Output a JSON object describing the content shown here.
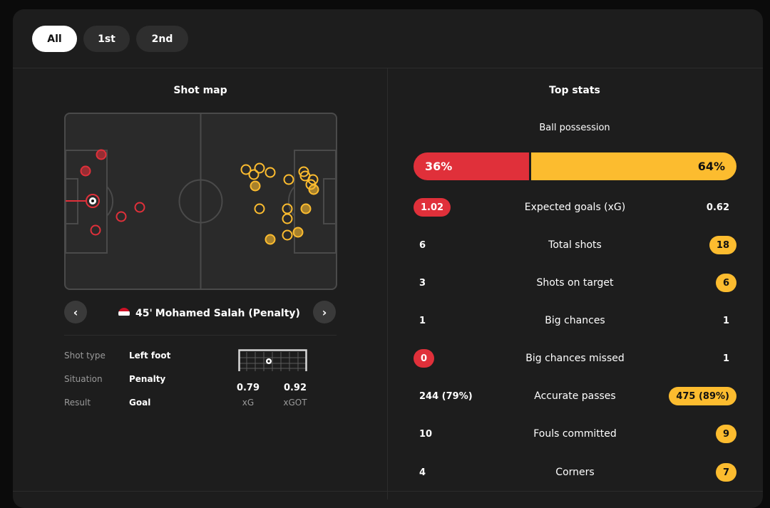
{
  "filters": [
    {
      "label": "All",
      "active": true
    },
    {
      "label": "1st",
      "active": false
    },
    {
      "label": "2nd",
      "active": false
    }
  ],
  "shot_map": {
    "title": "Shot map",
    "selected_shot": {
      "minute": "45'",
      "player": "Mohamed Salah (Penalty)",
      "team_flag": "egypt-flag"
    },
    "details": [
      {
        "key": "Shot type",
        "value": "Left foot"
      },
      {
        "key": "Situation",
        "value": "Penalty"
      },
      {
        "key": "Result",
        "value": "Goal"
      }
    ],
    "xg": {
      "value": "0.79",
      "label": "xG"
    },
    "xgot": {
      "value": "0.92",
      "label": "xGOT"
    }
  },
  "colors": {
    "home": "#e0303a",
    "away": "#fcbc2f"
  },
  "top_stats": {
    "title": "Top stats",
    "possession": {
      "label": "Ball possession",
      "home": "36%",
      "away": "64%",
      "home_pct": 36
    },
    "rows": [
      {
        "name": "Expected goals (xG)",
        "home": "1.02",
        "away": "0.62",
        "highlight": "home"
      },
      {
        "name": "Total shots",
        "home": "6",
        "away": "18",
        "highlight": "away"
      },
      {
        "name": "Shots on target",
        "home": "3",
        "away": "6",
        "highlight": "away"
      },
      {
        "name": "Big chances",
        "home": "1",
        "away": "1",
        "highlight": "none"
      },
      {
        "name": "Big chances missed",
        "home": "0",
        "away": "1",
        "highlight": "home"
      },
      {
        "name": "Accurate passes",
        "home": "244 (79%)",
        "away": "475 (89%)",
        "highlight": "away"
      },
      {
        "name": "Fouls committed",
        "home": "10",
        "away": "9",
        "highlight": "away"
      },
      {
        "name": "Corners",
        "home": "4",
        "away": "7",
        "highlight": "away"
      }
    ]
  }
}
